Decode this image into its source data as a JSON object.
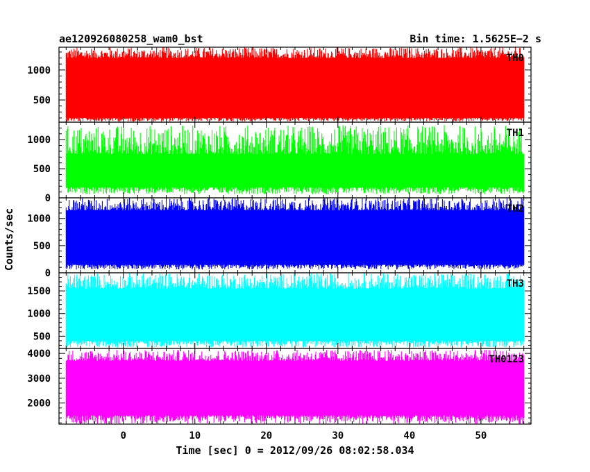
{
  "header": {
    "left_title": "ae120926080258_wam0_bst",
    "right_title": "Bin time: 1.5625E−2 s"
  },
  "chart_data": {
    "type": "line",
    "title": "ae120926080258_wam0_bst",
    "subtitle": "Bin time: 1.5625E−2 s",
    "xlabel": "Time [sec] 0 = 2012/09/26 08:02:58.034",
    "ylabel": "Counts/sec",
    "xlim": [
      -9,
      57
    ],
    "x_data_range": [
      -8,
      56
    ],
    "x_ticks": [
      0,
      10,
      20,
      30,
      40,
      50
    ],
    "grid": false,
    "panels": [
      {
        "name": "TH0",
        "color": "#ff0000",
        "ylim": [
          130,
          1380
        ],
        "yticks": [
          500,
          1000
        ],
        "base": 300,
        "band_low": 200,
        "band_high": 1200,
        "peak_high": 1380,
        "dip_low": 140
      },
      {
        "name": "TH1",
        "color": "#00ff00",
        "ylim": [
          0,
          1300
        ],
        "yticks": [
          0,
          500,
          1000
        ],
        "base": 100,
        "band_low": 180,
        "band_high": 750,
        "peak_high": 1250,
        "dip_low": 60
      },
      {
        "name": "TH2",
        "color": "#0000ff",
        "ylim": [
          0,
          1380
        ],
        "yticks": [
          0,
          500,
          1000
        ],
        "base": 200,
        "band_low": 150,
        "band_high": 1150,
        "peak_high": 1380,
        "dip_low": 60
      },
      {
        "name": "TH3",
        "color": "#00ffff",
        "ylim": [
          230,
          1900
        ],
        "yticks": [
          500,
          1000,
          1500
        ],
        "base": 450,
        "band_low": 400,
        "band_high": 1550,
        "peak_high": 1900,
        "dip_low": 250
      },
      {
        "name": "TH0123",
        "color": "#ff00ff",
        "ylim": [
          1150,
          4200
        ],
        "yticks": [
          2000,
          3000,
          4000
        ],
        "base": 1800,
        "band_low": 1500,
        "band_high": 3700,
        "peak_high": 4150,
        "dip_low": 1150
      }
    ]
  }
}
